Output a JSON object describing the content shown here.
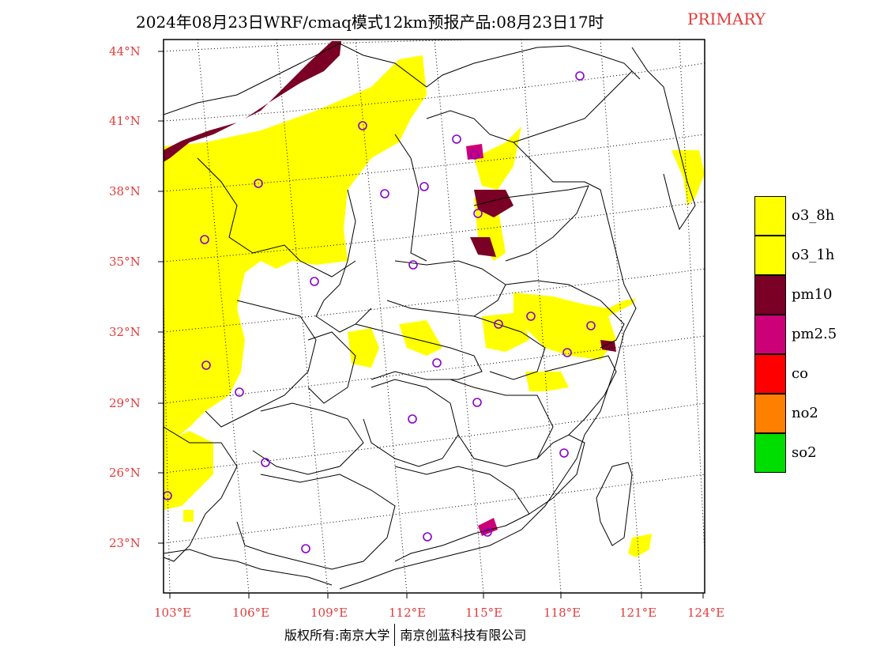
{
  "title": {
    "main": "2024年08月23日WRF/cmaq模式12km预报产品:08月23日17时",
    "tag": "PRIMARY",
    "tag_color": "#e23b3b"
  },
  "map": {
    "lat_labels": [
      "44°N",
      "41°N",
      "38°N",
      "35°N",
      "32°N",
      "29°N",
      "26°N",
      "23°N"
    ],
    "lon_labels": [
      "103°E",
      "106°E",
      "109°E",
      "112°E",
      "115°E",
      "118°E",
      "121°E",
      "124°E"
    ],
    "label_color": "#e23b3b",
    "stations": 26
  },
  "legend": {
    "items": [
      {
        "label": "o3_8h",
        "color": "#ffff00"
      },
      {
        "label": "o3_1h",
        "color": "#ffff00"
      },
      {
        "label": "pm10",
        "color": "#7a0025"
      },
      {
        "label": "pm2.5",
        "color": "#cc0077"
      },
      {
        "label": "co",
        "color": "#ff0000"
      },
      {
        "label": "no2",
        "color": "#ff7f00"
      },
      {
        "label": "so2",
        "color": "#00dd00"
      }
    ]
  },
  "footer": {
    "left": "版权所有:南京大学",
    "right": "南京创蓝科技有限公司"
  }
}
